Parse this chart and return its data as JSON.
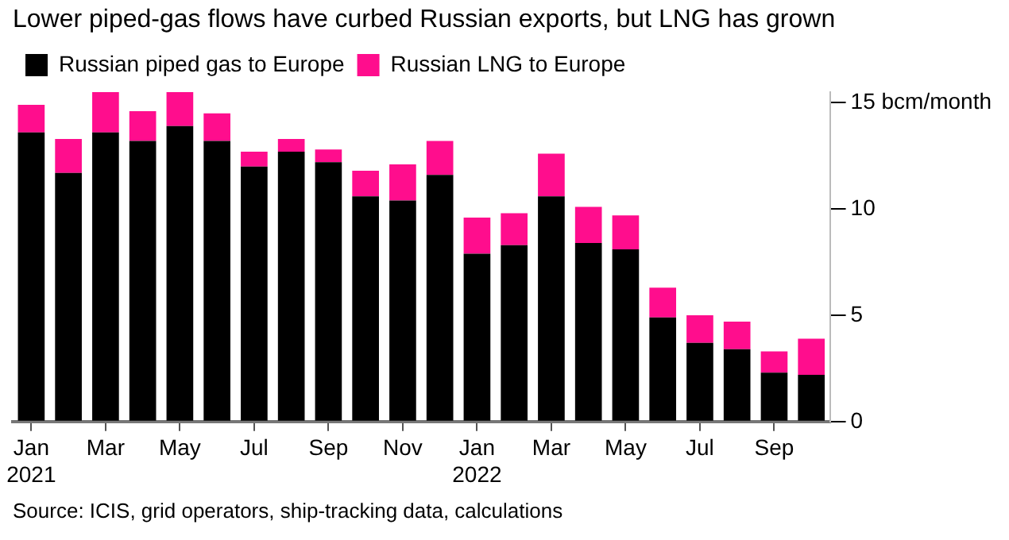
{
  "chart_data": {
    "type": "bar",
    "title": "Lower piped-gas flows have curbed Russian exports, but LNG has grown",
    "categories": [
      "Jan\n2021",
      null,
      "Mar",
      null,
      "May",
      null,
      "Jul",
      null,
      "Sep",
      null,
      "Nov",
      null,
      "Jan\n2022",
      null,
      "Mar",
      null,
      "May",
      null,
      "Jul",
      null,
      "Sep",
      null
    ],
    "series": [
      {
        "name": "Russian piped gas to Europe",
        "color": "#000000",
        "values": [
          13.6,
          11.7,
          13.6,
          13.2,
          13.9,
          13.2,
          12.0,
          12.7,
          12.2,
          10.6,
          10.4,
          11.6,
          7.9,
          8.3,
          10.6,
          8.4,
          8.1,
          4.9,
          3.7,
          3.4,
          2.3,
          2.2
        ]
      },
      {
        "name": "Russian LNG to Europe",
        "color": "#ff0d8d",
        "values": [
          1.3,
          1.6,
          1.9,
          1.4,
          1.6,
          1.3,
          0.7,
          0.6,
          0.6,
          1.2,
          1.7,
          1.6,
          1.7,
          1.5,
          2.0,
          1.7,
          1.6,
          1.4,
          1.3,
          1.3,
          1.0,
          1.7
        ]
      }
    ],
    "stacked": true,
    "ylim": [
      0,
      15.5
    ],
    "yticks": [
      0,
      5,
      10,
      {
        "value": 15,
        "label": "15 bcm/month"
      }
    ],
    "grid": false,
    "legend": "top left",
    "annotations": [
      "Source: ICIS, grid operators, ship-tracking data, calculations"
    ]
  }
}
